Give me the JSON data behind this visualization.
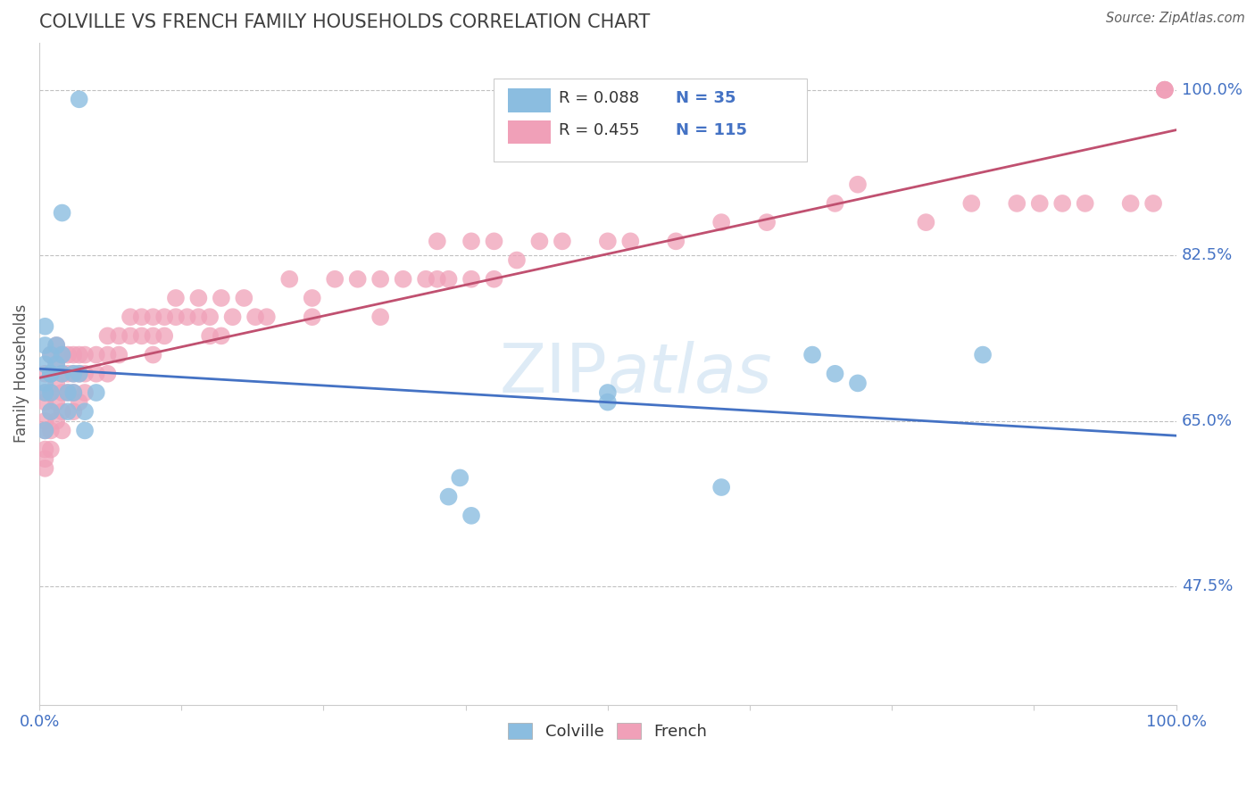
{
  "title": "COLVILLE VS FRENCH FAMILY HOUSEHOLDS CORRELATION CHART",
  "source_text": "Source: ZipAtlas.com",
  "ylabel": "Family Households",
  "xlim": [
    0.0,
    1.0
  ],
  "ylim": [
    0.35,
    1.05
  ],
  "ytick_labels": [
    "47.5%",
    "65.0%",
    "82.5%",
    "100.0%"
  ],
  "ytick_values": [
    0.475,
    0.65,
    0.825,
    1.0
  ],
  "colville_color": "#8BBDE0",
  "french_color": "#F0A0B8",
  "colville_trend_color": "#4472C4",
  "french_trend_color": "#C05070",
  "title_color": "#404040",
  "axis_label_color": "#4472C4",
  "background_color": "#FFFFFF",
  "watermark_color": "#C8DFF0",
  "colville_x": [
    0.035,
    0.02,
    0.01,
    0.005,
    0.005,
    0.005,
    0.005,
    0.005,
    0.005,
    0.01,
    0.01,
    0.01,
    0.01,
    0.015,
    0.015,
    0.02,
    0.02,
    0.025,
    0.025,
    0.03,
    0.03,
    0.035,
    0.04,
    0.04,
    0.05,
    0.36,
    0.37,
    0.38,
    0.5,
    0.5,
    0.6,
    0.68,
    0.7,
    0.72,
    0.83
  ],
  "colville_y": [
    0.99,
    0.87,
    0.7,
    0.71,
    0.73,
    0.75,
    0.68,
    0.69,
    0.64,
    0.72,
    0.7,
    0.68,
    0.66,
    0.73,
    0.71,
    0.72,
    0.7,
    0.68,
    0.66,
    0.7,
    0.68,
    0.7,
    0.66,
    0.64,
    0.68,
    0.57,
    0.59,
    0.55,
    0.68,
    0.67,
    0.58,
    0.72,
    0.7,
    0.69,
    0.72
  ],
  "french_x": [
    0.005,
    0.005,
    0.005,
    0.005,
    0.005,
    0.005,
    0.005,
    0.005,
    0.01,
    0.01,
    0.01,
    0.01,
    0.01,
    0.01,
    0.015,
    0.015,
    0.015,
    0.015,
    0.015,
    0.02,
    0.02,
    0.02,
    0.02,
    0.02,
    0.025,
    0.025,
    0.025,
    0.03,
    0.03,
    0.03,
    0.03,
    0.035,
    0.035,
    0.035,
    0.04,
    0.04,
    0.04,
    0.05,
    0.05,
    0.06,
    0.06,
    0.06,
    0.07,
    0.07,
    0.08,
    0.08,
    0.09,
    0.09,
    0.1,
    0.1,
    0.1,
    0.11,
    0.11,
    0.12,
    0.12,
    0.13,
    0.14,
    0.14,
    0.15,
    0.15,
    0.16,
    0.16,
    0.17,
    0.18,
    0.19,
    0.2,
    0.22,
    0.24,
    0.24,
    0.26,
    0.28,
    0.3,
    0.3,
    0.32,
    0.34,
    0.35,
    0.35,
    0.36,
    0.38,
    0.38,
    0.4,
    0.4,
    0.42,
    0.44,
    0.46,
    0.5,
    0.52,
    0.56,
    0.6,
    0.64,
    0.7,
    0.72,
    0.78,
    0.82,
    0.86,
    0.88,
    0.9,
    0.92,
    0.96,
    0.98,
    0.99,
    0.99,
    0.99
  ],
  "french_y": [
    0.7,
    0.68,
    0.67,
    0.65,
    0.64,
    0.62,
    0.61,
    0.6,
    0.72,
    0.7,
    0.68,
    0.66,
    0.64,
    0.62,
    0.73,
    0.71,
    0.69,
    0.67,
    0.65,
    0.72,
    0.7,
    0.68,
    0.66,
    0.64,
    0.72,
    0.7,
    0.68,
    0.72,
    0.7,
    0.68,
    0.66,
    0.72,
    0.7,
    0.67,
    0.72,
    0.7,
    0.68,
    0.72,
    0.7,
    0.74,
    0.72,
    0.7,
    0.74,
    0.72,
    0.76,
    0.74,
    0.76,
    0.74,
    0.76,
    0.74,
    0.72,
    0.76,
    0.74,
    0.78,
    0.76,
    0.76,
    0.78,
    0.76,
    0.76,
    0.74,
    0.78,
    0.74,
    0.76,
    0.78,
    0.76,
    0.76,
    0.8,
    0.78,
    0.76,
    0.8,
    0.8,
    0.8,
    0.76,
    0.8,
    0.8,
    0.84,
    0.8,
    0.8,
    0.84,
    0.8,
    0.84,
    0.8,
    0.82,
    0.84,
    0.84,
    0.84,
    0.84,
    0.84,
    0.86,
    0.86,
    0.88,
    0.9,
    0.86,
    0.88,
    0.88,
    0.88,
    0.88,
    0.88,
    0.88,
    0.88,
    1.0,
    1.0,
    1.0
  ]
}
